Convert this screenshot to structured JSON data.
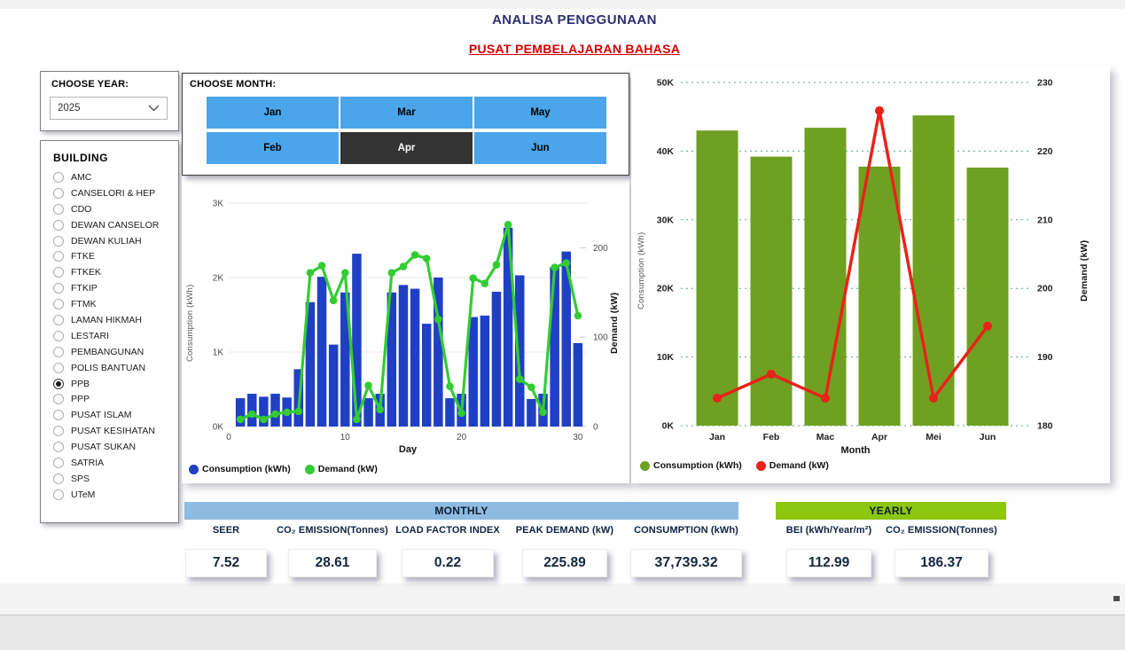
{
  "header": {
    "title": "ANALISA PENGGUNAAN",
    "subtitle": "PUSAT PEMBELAJARAN BAHASA"
  },
  "year_slicer": {
    "label": "CHOOSE YEAR:",
    "value": "2025"
  },
  "building_slicer": {
    "label": "BUILDING",
    "selected": "PPB",
    "options": [
      "AMC",
      "CANSELORI & HEP",
      "CDO",
      "DEWAN CANSELOR",
      "DEWAN KULIAH",
      "FTKE",
      "FTKEK",
      "FTKIP",
      "FTMK",
      "LAMAN HIKMAH",
      "LESTARI",
      "PEMBANGUNAN",
      "POLIS BANTUAN",
      "PPB",
      "PPP",
      "PUSAT ISLAM",
      "PUSAT KESIHATAN",
      "PUSAT SUKAN",
      "SATRIA",
      "SPS",
      "UTeM"
    ]
  },
  "month_slicer": {
    "label": "CHOOSE MONTH:",
    "selected": "Apr",
    "buttons": [
      "Jan",
      "Mar",
      "May",
      "Feb",
      "Apr",
      "Jun"
    ]
  },
  "chart_data": [
    {
      "id": "daily",
      "type": "combo_bar_line",
      "title": "",
      "xlabel": "Day",
      "x": [
        1,
        2,
        3,
        4,
        5,
        6,
        7,
        8,
        9,
        10,
        11,
        12,
        13,
        14,
        15,
        16,
        17,
        18,
        19,
        20,
        21,
        22,
        23,
        24,
        25,
        26,
        27,
        28,
        29,
        30
      ],
      "x_ticks": [
        {
          "v": 0,
          "label": "0"
        },
        {
          "v": 10,
          "label": "10"
        },
        {
          "v": 20,
          "label": "20"
        },
        {
          "v": 30,
          "label": "30"
        }
      ],
      "y_left": {
        "label": "Consumption (kWh)",
        "min": 0,
        "max": 3000,
        "ticks": [
          {
            "v": 0,
            "label": "0K"
          },
          {
            "v": 1000,
            "label": "1K"
          },
          {
            "v": 2000,
            "label": "2K"
          },
          {
            "v": 3000,
            "label": "3K"
          }
        ]
      },
      "y_right": {
        "label": "Demand (kW)",
        "min": 0,
        "max": 250,
        "ticks": [
          {
            "v": 0,
            "label": "0"
          },
          {
            "v": 100,
            "label": "100"
          },
          {
            "v": 200,
            "label": "200"
          }
        ]
      },
      "grid": "solid",
      "legend_position": "bottom-left",
      "series": [
        {
          "name": "Consumption (kWh)",
          "type": "bar",
          "axis": "left",
          "color": "#1f40c4",
          "values": [
            380,
            440,
            400,
            440,
            390,
            770,
            1670,
            2010,
            1100,
            1800,
            2320,
            380,
            440,
            1800,
            1900,
            1850,
            1380,
            2000,
            380,
            440,
            1470,
            1490,
            1810,
            2670,
            2030,
            370,
            440,
            2140,
            2350,
            1120
          ]
        },
        {
          "name": "Demand (kW)",
          "type": "line",
          "axis": "right",
          "color": "#33cc33",
          "values": [
            8,
            14,
            8,
            14,
            16,
            17,
            172,
            180,
            141,
            172,
            8,
            46,
            19,
            172,
            179,
            192,
            188,
            120,
            45,
            15,
            166,
            160,
            181,
            225.89,
            53,
            44,
            16,
            178,
            183,
            124
          ]
        }
      ]
    },
    {
      "id": "monthly",
      "type": "combo_bar_line",
      "title": "",
      "xlabel": "Month",
      "categories": [
        "Jan",
        "Feb",
        "Mac",
        "Apr",
        "Mei",
        "Jun"
      ],
      "y_left": {
        "label": "Consumption (kWh)",
        "min": 0,
        "max": 50000,
        "ticks": [
          {
            "v": 0,
            "label": "0K"
          },
          {
            "v": 10000,
            "label": "10K"
          },
          {
            "v": 20000,
            "label": "20K"
          },
          {
            "v": 30000,
            "label": "30K"
          },
          {
            "v": 40000,
            "label": "40K"
          },
          {
            "v": 50000,
            "label": "50K"
          }
        ]
      },
      "y_right": {
        "label": "Demand (kW)",
        "min": 180,
        "max": 230,
        "ticks": [
          {
            "v": 180,
            "label": "180"
          },
          {
            "v": 190,
            "label": "190"
          },
          {
            "v": 200,
            "label": "200"
          },
          {
            "v": 210,
            "label": "210"
          },
          {
            "v": 220,
            "label": "220"
          },
          {
            "v": 230,
            "label": "230"
          }
        ]
      },
      "grid": "dotted",
      "legend_position": "bottom-left",
      "series": [
        {
          "name": "Consumption (kWh)",
          "type": "bar",
          "axis": "left",
          "color": "#6fa022",
          "values": [
            43000,
            39200,
            43400,
            37739,
            45200,
            37600
          ]
        },
        {
          "name": "Demand (kW)",
          "type": "line",
          "axis": "right",
          "color": "#e8231a",
          "values": [
            184,
            187.5,
            184,
            225.89,
            184,
            194.5
          ]
        }
      ]
    }
  ],
  "kpi": {
    "monthly": {
      "header": "MONTHLY",
      "items": [
        {
          "label": "SEER",
          "value": "7.52"
        },
        {
          "label": "CO₂ EMISSION(Tonnes)",
          "value": "28.61"
        },
        {
          "label": "LOAD FACTOR INDEX",
          "value": "0.22"
        },
        {
          "label": "PEAK DEMAND (kW)",
          "value": "225.89"
        },
        {
          "label": "CONSUMPTION (kWh)",
          "value": "37,739.32"
        }
      ]
    },
    "yearly": {
      "header": "YEARLY",
      "items": [
        {
          "label": "BEI (kWh/Year/m²)",
          "value": "112.99"
        },
        {
          "label": "CO₂ EMISSION(Tonnes)",
          "value": "186.37"
        }
      ]
    }
  },
  "colors": {
    "title_navy": "#2b2f72",
    "subtitle_red": "#d40000",
    "month_button_blue": "#4aa5ea",
    "month_button_selected": "#333333",
    "daily_bar_blue": "#1f40c4",
    "daily_line_green": "#33cc33",
    "monthly_bar_green": "#6fa022",
    "monthly_line_red": "#e8231a",
    "monthly_header_bg": "#8fbbe0",
    "yearly_header_bg": "#8dc60e",
    "grid_dotted_green": "#55a87f",
    "grid_solid_grey": "#e8e8e8"
  }
}
